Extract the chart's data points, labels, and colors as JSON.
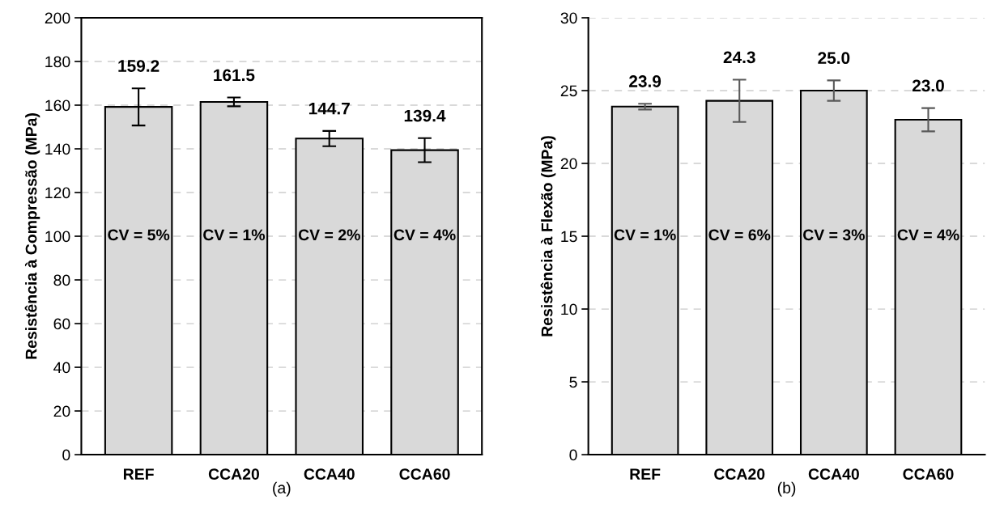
{
  "chart_data": [
    {
      "type": "bar",
      "categories": [
        "REF",
        "CCA20",
        "CCA40",
        "CCA60"
      ],
      "ylabel": "Resistência à Compressão (MPa)",
      "series": [
        {
          "color": "#d9d9d9",
          "values": [
            159.2,
            161.5,
            144.7,
            139.4
          ],
          "errors": [
            8.5,
            2,
            3.5,
            5.5
          ],
          "value_labels": [
            "159.2",
            "161.5",
            "144.7",
            "139.4"
          ]
        }
      ],
      "ylim": [
        0,
        200
      ],
      "yticks": [
        0,
        20,
        40,
        60,
        80,
        100,
        120,
        140,
        160,
        180,
        200
      ],
      "grid": "y",
      "legend": false,
      "annotations": [
        "CV = 5%",
        "CV = 1%",
        "CV = 2%",
        "CV = 4%",
        "(a)"
      ]
    },
    {
      "type": "bar",
      "categories": [
        "REF",
        "CCA20",
        "CCA40",
        "CCA60"
      ],
      "ylabel": "Resistência à Flexão (MPa)",
      "series": [
        {
          "color": "#d9d9d9",
          "values": [
            23.9,
            24.3,
            25.0,
            23.0
          ],
          "errors": [
            0.2,
            1.45,
            0.7,
            0.8
          ],
          "value_labels": [
            "23.9",
            "24.3",
            "25.0",
            "23.0"
          ]
        }
      ],
      "ylim": [
        0,
        30
      ],
      "yticks": [
        0,
        5,
        10,
        15,
        20,
        25,
        30
      ],
      "grid": "y",
      "legend": false,
      "annotations": [
        "CV = 1%",
        "CV = 6%",
        "CV = 3%",
        "CV = 4%",
        "(b)"
      ]
    }
  ]
}
